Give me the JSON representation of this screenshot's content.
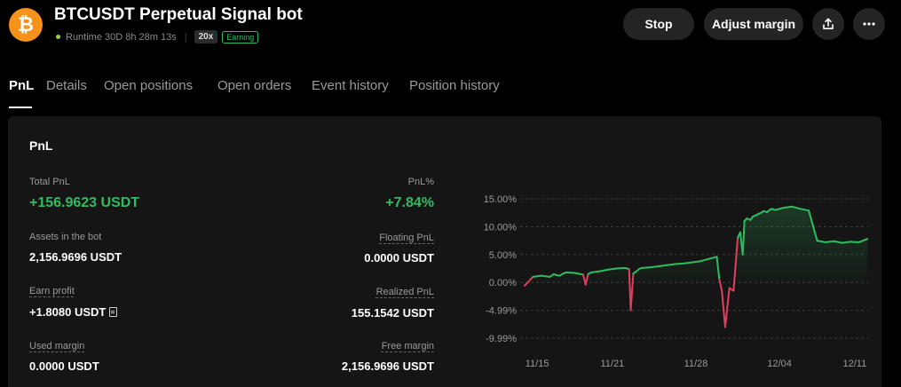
{
  "header": {
    "coin_symbol": "₿",
    "title": "BTCUSDT Perpetual Signal bot",
    "runtime": "Runtime 30D 8h 28m 13s",
    "separator": "|",
    "leverage": "20x",
    "status": "Earning",
    "stop_label": "Stop",
    "adjust_label": "Adjust margin",
    "share_icon": "share-icon",
    "more_icon": "more-icon"
  },
  "tabs": [
    "PnL",
    "Details",
    "Open positions",
    "Open orders",
    "Event history",
    "Position history"
  ],
  "panel": {
    "title": "PnL",
    "total_pnl_label": "Total PnL",
    "total_pnl_value": "+156.9623 USDT",
    "pnl_pct_label": "PnL%",
    "pnl_pct_value": "+7.84%",
    "assets_label": "Assets in the bot",
    "assets_value": "2,156.9696 USDT",
    "floating_label": "Floating PnL",
    "floating_value": "0.0000 USDT",
    "earn_label": "Earn profit",
    "earn_value": "+1.8080 USDT",
    "realized_label": "Realized PnL",
    "realized_value": "155.1542 USDT",
    "used_label": "Used margin",
    "used_value": "0.0000 USDT",
    "free_label": "Free margin",
    "free_value": "2,156.9696 USDT"
  },
  "colors": {
    "positive": "#2ebd5f",
    "negative": "#e0405e",
    "accent": "#f7931a"
  },
  "chart_data": {
    "type": "line",
    "title": "",
    "xlabel": "",
    "ylabel": "",
    "y_ticks": [
      "15.00%",
      "10.00%",
      "5.00%",
      "0.00%",
      "-4.99%",
      "-9.99%"
    ],
    "x_ticks": [
      "11/15",
      "11/21",
      "11/28",
      "12/04",
      "12/11"
    ],
    "ylim": [
      -10,
      15
    ],
    "grid": true,
    "series": [
      {
        "x": [
          0,
          1,
          2,
          3,
          3.5,
          3.8,
          4.2,
          4.6,
          5,
          6,
          7,
          7.3,
          7.6,
          8,
          9,
          10,
          11,
          12,
          12.5,
          12.7,
          13,
          13.3,
          13.7,
          14,
          15,
          16,
          17,
          18,
          19,
          20,
          21,
          22,
          23,
          23.3,
          23.6,
          24,
          24.5,
          25,
          25.5,
          25.8,
          26.1,
          26.3,
          26.6,
          27,
          27.3,
          27.6,
          28,
          28.3,
          28.6,
          29,
          29.3,
          29.6,
          30,
          31,
          32,
          33,
          34,
          35,
          36,
          37,
          38,
          39,
          40,
          41
        ],
        "y": [
          -0.6,
          1,
          1.2,
          1,
          1.5,
          1.3,
          1.2,
          1.6,
          1.8,
          1.7,
          1.4,
          -0.4,
          1.5,
          1.8,
          2.0,
          2.3,
          2.5,
          2.6,
          2.4,
          -5,
          1.6,
          1.9,
          2.4,
          2.6,
          2.7,
          2.9,
          3.1,
          3.3,
          3.4,
          3.6,
          3.8,
          4.2,
          4.6,
          0.5,
          -1.5,
          -8,
          -1,
          -1.5,
          8,
          9,
          5,
          11,
          11.5,
          11.2,
          11.8,
          12,
          12.3,
          12.5,
          12.8,
          12.6,
          13.0,
          13.2,
          13.0,
          13.4,
          13.6,
          13.2,
          12.9,
          7.5,
          7.2,
          7.4,
          7.1,
          7.3,
          7.2,
          7.8
        ]
      }
    ]
  }
}
